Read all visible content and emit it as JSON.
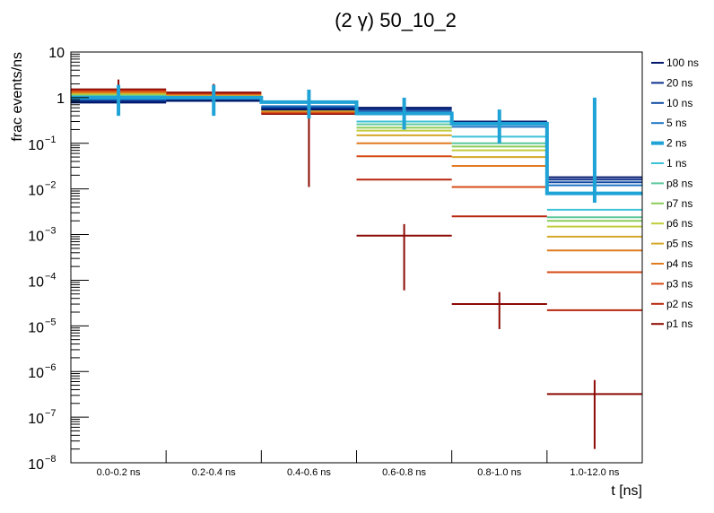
{
  "chart_data": {
    "type": "step",
    "title": "(2 γ) 50_10_2",
    "xlabel": "t [ns]",
    "ylabel": "frac events/ns",
    "yscale": "log",
    "ylim": [
      1e-08,
      10
    ],
    "categories": [
      "0.0-0.2 ns",
      "0.2-0.4 ns",
      "0.4-0.6 ns",
      "0.6-0.8 ns",
      "0.8-1.0 ns",
      "1.0-12.0 ns"
    ],
    "ytick_labels": [
      {
        "value": 10,
        "mant": "10",
        "exp": ""
      },
      {
        "value": 1,
        "mant": "1",
        "exp": ""
      },
      {
        "value": 0.1,
        "mant": "10",
        "exp": "−1"
      },
      {
        "value": 0.01,
        "mant": "10",
        "exp": "−2"
      },
      {
        "value": 0.001,
        "mant": "10",
        "exp": "−3"
      },
      {
        "value": 0.0001,
        "mant": "10",
        "exp": "−4"
      },
      {
        "value": 1e-05,
        "mant": "10",
        "exp": "−5"
      },
      {
        "value": 1e-06,
        "mant": "10",
        "exp": "−6"
      },
      {
        "value": 1e-07,
        "mant": "10",
        "exp": "−7"
      },
      {
        "value": 1e-08,
        "mant": "10",
        "exp": "−8"
      }
    ],
    "series": [
      {
        "name": "100 ns",
        "color": "#00176b",
        "highlight": false,
        "values": [
          0.78,
          0.85,
          0.55,
          0.6,
          0.3,
          0.018
        ],
        "err_lo": [
          null,
          null,
          null,
          null,
          null,
          null
        ],
        "err_hi": [
          null,
          null,
          null,
          null,
          null,
          null
        ]
      },
      {
        "name": "20 ns",
        "color": "#0a2f8a",
        "highlight": false,
        "values": [
          0.82,
          0.88,
          0.57,
          0.55,
          0.28,
          0.016
        ],
        "err_lo": [
          null,
          null,
          null,
          null,
          null,
          null
        ],
        "err_hi": [
          null,
          null,
          null,
          null,
          null,
          null
        ]
      },
      {
        "name": "10 ns",
        "color": "#124da3",
        "highlight": false,
        "values": [
          0.86,
          0.9,
          0.6,
          0.5,
          0.26,
          0.014
        ],
        "err_lo": [
          null,
          null,
          null,
          null,
          null,
          null
        ],
        "err_hi": [
          null,
          null,
          null,
          null,
          null,
          null
        ]
      },
      {
        "name": "5 ns",
        "color": "#1c74c4",
        "highlight": false,
        "values": [
          0.92,
          0.93,
          0.65,
          0.45,
          0.23,
          0.012
        ],
        "err_lo": [
          null,
          null,
          null,
          null,
          null,
          null
        ],
        "err_hi": [
          null,
          null,
          null,
          null,
          null,
          null
        ]
      },
      {
        "name": "2 ns",
        "color": "#1fa2d6",
        "highlight": true,
        "values": [
          1.0,
          1.0,
          0.8,
          0.45,
          0.27,
          0.008
        ],
        "err_lo": [
          0.4,
          0.4,
          0.35,
          0.2,
          0.1,
          0.005
        ],
        "err_hi": [
          1.9,
          1.9,
          1.5,
          1.0,
          0.55,
          1.0
        ]
      },
      {
        "name": "1 ns",
        "color": "#3cc2d9",
        "highlight": false,
        "values": [
          1.05,
          1.0,
          0.62,
          0.3,
          0.14,
          0.0035
        ],
        "err_lo": [
          null,
          null,
          null,
          null,
          null,
          null
        ],
        "err_hi": [
          null,
          null,
          null,
          null,
          null,
          null
        ]
      },
      {
        "name": "p8 ns",
        "color": "#5cc79c",
        "highlight": false,
        "values": [
          1.08,
          1.02,
          0.6,
          0.26,
          0.1,
          0.0024
        ],
        "err_lo": [
          null,
          null,
          null,
          null,
          null,
          null
        ],
        "err_hi": [
          null,
          null,
          null,
          null,
          null,
          null
        ]
      },
      {
        "name": "p7 ns",
        "color": "#8ccc5a",
        "highlight": false,
        "values": [
          1.12,
          1.04,
          0.58,
          0.22,
          0.085,
          0.002
        ],
        "err_lo": [
          null,
          null,
          null,
          null,
          null,
          null
        ],
        "err_hi": [
          null,
          null,
          null,
          null,
          null,
          null
        ]
      },
      {
        "name": "p6 ns",
        "color": "#c0cc3a",
        "highlight": false,
        "values": [
          1.16,
          1.06,
          0.55,
          0.19,
          0.07,
          0.0015
        ],
        "err_lo": [
          null,
          null,
          null,
          null,
          null,
          null
        ],
        "err_hi": [
          null,
          null,
          null,
          null,
          null,
          null
        ]
      },
      {
        "name": "p5 ns",
        "color": "#d4a82a",
        "highlight": false,
        "values": [
          1.2,
          1.08,
          0.52,
          0.15,
          0.05,
          0.0009
        ],
        "err_lo": [
          null,
          null,
          null,
          null,
          null,
          null
        ],
        "err_hi": [
          null,
          null,
          null,
          null,
          null,
          null
        ]
      },
      {
        "name": "p4 ns",
        "color": "#e07a1e",
        "highlight": false,
        "values": [
          1.28,
          1.12,
          0.5,
          0.1,
          0.032,
          0.00045
        ],
        "err_lo": [
          null,
          null,
          null,
          null,
          null,
          null
        ],
        "err_hi": [
          null,
          null,
          null,
          null,
          null,
          null
        ]
      },
      {
        "name": "p3 ns",
        "color": "#d54a14",
        "highlight": false,
        "values": [
          1.36,
          1.16,
          0.48,
          0.052,
          0.011,
          0.00015
        ],
        "err_lo": [
          null,
          null,
          null,
          null,
          null,
          null
        ],
        "err_hi": [
          null,
          null,
          null,
          null,
          null,
          null
        ]
      },
      {
        "name": "p2 ns",
        "color": "#b8260e",
        "highlight": false,
        "values": [
          1.44,
          1.2,
          0.46,
          0.016,
          0.0025,
          2.2e-05
        ],
        "err_lo": [
          null,
          null,
          null,
          null,
          null,
          null
        ],
        "err_hi": [
          null,
          null,
          null,
          null,
          null,
          null
        ]
      },
      {
        "name": "p1 ns",
        "color": "#8c0a04",
        "highlight": false,
        "values": [
          1.52,
          1.3,
          0.44,
          0.00095,
          3e-05,
          3.2e-07
        ],
        "err_lo": [
          0.6,
          0.5,
          0.011,
          6e-05,
          8.5e-06,
          2e-08
        ],
        "err_hi": [
          2.5,
          2.0,
          1.2,
          0.0017,
          5.5e-05,
          6.5e-07
        ]
      }
    ]
  }
}
